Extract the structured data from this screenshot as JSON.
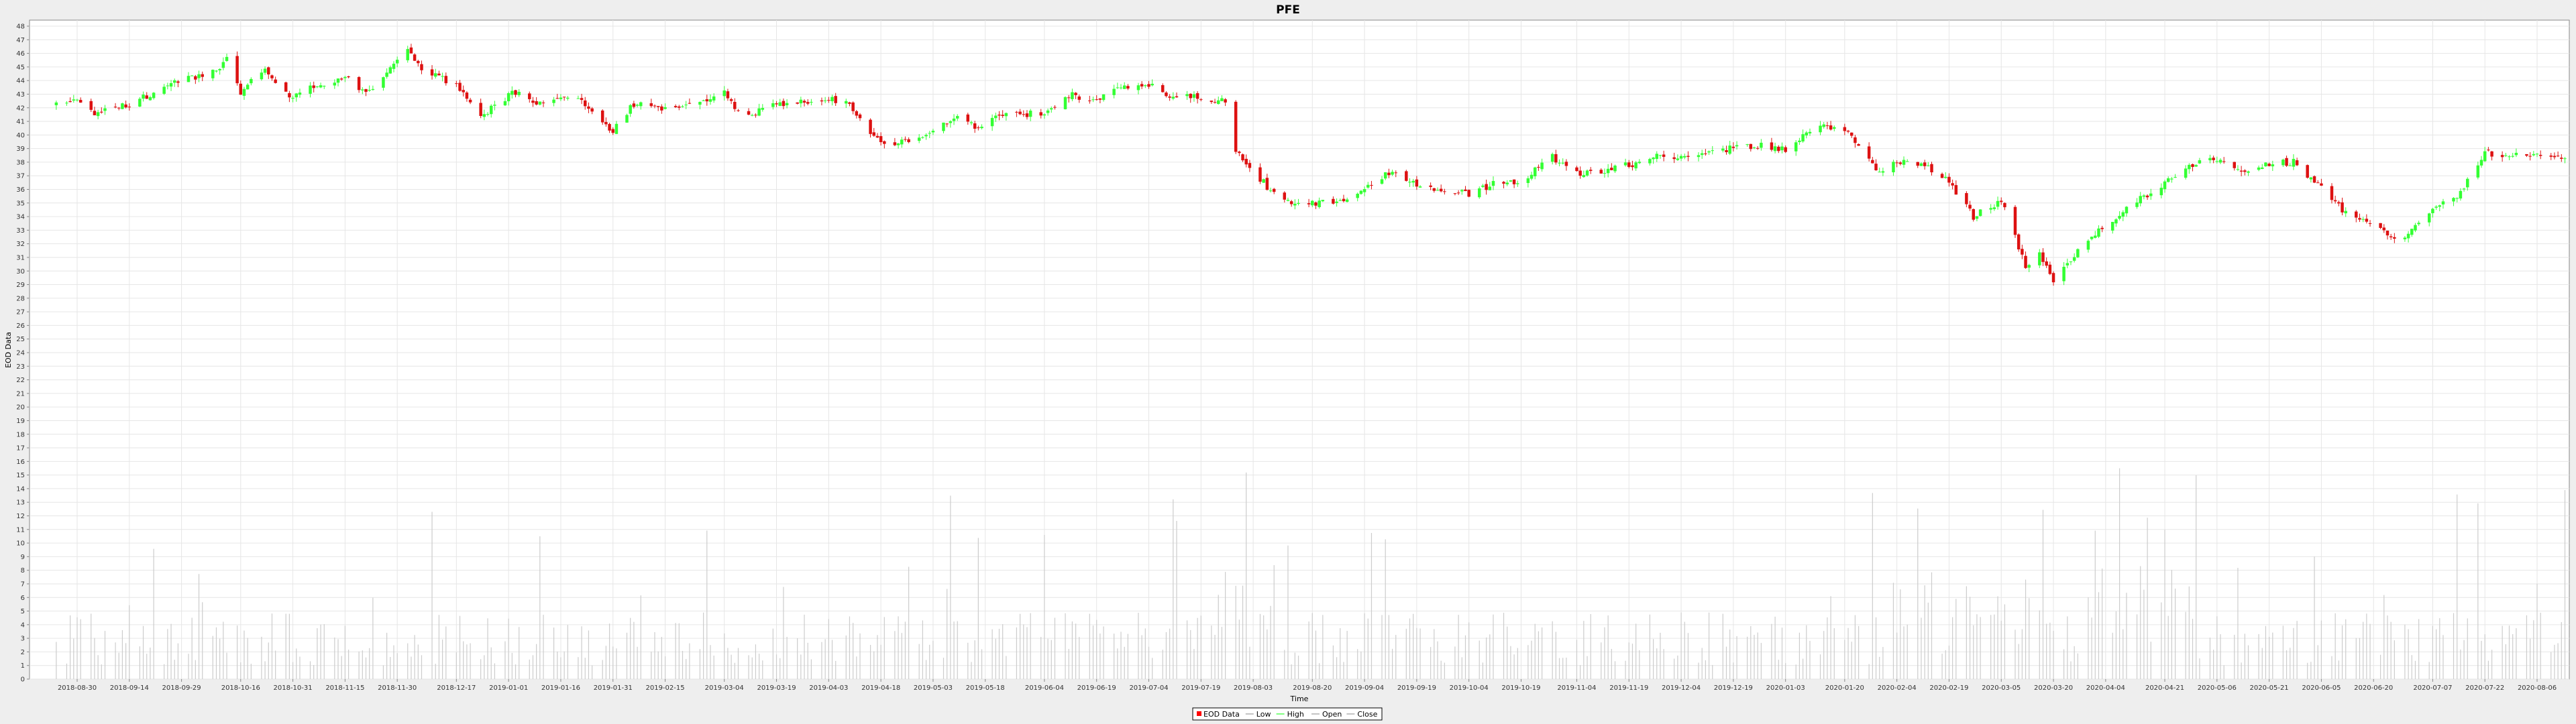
{
  "chart_data": {
    "type": "candlestick",
    "title": "PFE",
    "xlabel": "Time",
    "ylabel": "EOD Data",
    "ylim": [
      0,
      48
    ],
    "grid": true,
    "legend_position": "bottom",
    "y_ticks": [
      0,
      1,
      2,
      3,
      4,
      5,
      6,
      7,
      8,
      9,
      10,
      11,
      12,
      13,
      14,
      15,
      16,
      17,
      18,
      19,
      20,
      21,
      22,
      23,
      24,
      25,
      26,
      27,
      28,
      29,
      30,
      31,
      32,
      33,
      34,
      35,
      36,
      37,
      38,
      39,
      40,
      41,
      42,
      43,
      44,
      45,
      46,
      47,
      48
    ],
    "x_ticks": [
      "2018-08-30",
      "2018-09-14",
      "2018-09-29",
      "2018-10-16",
      "2018-10-31",
      "2018-11-15",
      "2018-11-30",
      "2018-12-17",
      "2019-01-01",
      "2019-01-16",
      "2019-01-31",
      "2019-02-15",
      "2019-03-04",
      "2019-03-19",
      "2019-04-03",
      "2019-04-18",
      "2019-05-03",
      "2019-05-18",
      "2019-06-04",
      "2019-06-19",
      "2019-07-04",
      "2019-07-19",
      "2019-08-03",
      "2019-08-20",
      "2019-09-04",
      "2019-09-19",
      "2019-10-04",
      "2019-10-19",
      "2019-11-04",
      "2019-11-19",
      "2019-12-04",
      "2019-12-19",
      "2020-01-03",
      "2020-01-20",
      "2020-02-04",
      "2020-02-19",
      "2020-03-05",
      "2020-03-20",
      "2020-04-04",
      "2020-04-21",
      "2020-05-06",
      "2020-05-21",
      "2020-06-05",
      "2020-06-20",
      "2020-07-07",
      "2020-07-22",
      "2020-08-06"
    ],
    "price_anchors": [
      {
        "date": "2018-08-24",
        "close": 42.3
      },
      {
        "date": "2018-08-31",
        "close": 42.4
      },
      {
        "date": "2018-09-04",
        "close": 41.6
      },
      {
        "date": "2018-09-14",
        "close": 42.3
      },
      {
        "date": "2018-09-24",
        "close": 43.5
      },
      {
        "date": "2018-09-29",
        "close": 44.1
      },
      {
        "date": "2018-10-09",
        "close": 44.6
      },
      {
        "date": "2018-10-12",
        "close": 45.6
      },
      {
        "date": "2018-10-16",
        "close": 43.2
      },
      {
        "date": "2018-10-23",
        "close": 44.8
      },
      {
        "date": "2018-10-31",
        "close": 42.7
      },
      {
        "date": "2018-11-08",
        "close": 43.8
      },
      {
        "date": "2018-11-15",
        "close": 44.2
      },
      {
        "date": "2018-11-21",
        "close": 43.0
      },
      {
        "date": "2018-11-30",
        "close": 45.4
      },
      {
        "date": "2018-12-03",
        "close": 46.4
      },
      {
        "date": "2018-12-07",
        "close": 44.8
      },
      {
        "date": "2018-12-17",
        "close": 43.7
      },
      {
        "date": "2018-12-24",
        "close": 41.2
      },
      {
        "date": "2018-12-28",
        "close": 42.3
      },
      {
        "date": "2019-01-04",
        "close": 43.3
      },
      {
        "date": "2019-01-09",
        "close": 42.3
      },
      {
        "date": "2019-01-16",
        "close": 43.0
      },
      {
        "date": "2019-01-23",
        "close": 42.3
      },
      {
        "date": "2019-01-31",
        "close": 40.3
      },
      {
        "date": "2019-02-06",
        "close": 42.3
      },
      {
        "date": "2019-02-15",
        "close": 41.9
      },
      {
        "date": "2019-02-22",
        "close": 42.3
      },
      {
        "date": "2019-03-04",
        "close": 43.1
      },
      {
        "date": "2019-03-09",
        "close": 41.4
      },
      {
        "date": "2019-03-19",
        "close": 42.2
      },
      {
        "date": "2019-04-03",
        "close": 42.6
      },
      {
        "date": "2019-04-08",
        "close": 42.5
      },
      {
        "date": "2019-04-18",
        "close": 39.3
      },
      {
        "date": "2019-04-25",
        "close": 39.6
      },
      {
        "date": "2019-05-03",
        "close": 40.3
      },
      {
        "date": "2019-05-10",
        "close": 41.4
      },
      {
        "date": "2019-05-15",
        "close": 40.6
      },
      {
        "date": "2019-05-22",
        "close": 41.3
      },
      {
        "date": "2019-06-04",
        "close": 41.7
      },
      {
        "date": "2019-06-12",
        "close": 42.9
      },
      {
        "date": "2019-06-19",
        "close": 42.6
      },
      {
        "date": "2019-06-28",
        "close": 43.6
      },
      {
        "date": "2019-07-04",
        "close": 43.7
      },
      {
        "date": "2019-07-10",
        "close": 42.9
      },
      {
        "date": "2019-07-19",
        "close": 42.7
      },
      {
        "date": "2019-07-26",
        "close": 42.5
      },
      {
        "date": "2019-07-29",
        "close": 39.0
      },
      {
        "date": "2019-08-03",
        "close": 37.4
      },
      {
        "date": "2019-08-09",
        "close": 35.6
      },
      {
        "date": "2019-08-15",
        "close": 34.7
      },
      {
        "date": "2019-08-20",
        "close": 35.0
      },
      {
        "date": "2019-08-28",
        "close": 35.2
      },
      {
        "date": "2019-09-04",
        "close": 35.9
      },
      {
        "date": "2019-09-12",
        "close": 37.4
      },
      {
        "date": "2019-09-19",
        "close": 36.4
      },
      {
        "date": "2019-09-26",
        "close": 35.9
      },
      {
        "date": "2019-10-04",
        "close": 35.7
      },
      {
        "date": "2019-10-12",
        "close": 36.5
      },
      {
        "date": "2019-10-19",
        "close": 36.6
      },
      {
        "date": "2019-10-28",
        "close": 38.4
      },
      {
        "date": "2019-11-04",
        "close": 37.1
      },
      {
        "date": "2019-11-12",
        "close": 37.4
      },
      {
        "date": "2019-11-19",
        "close": 37.8
      },
      {
        "date": "2019-11-27",
        "close": 38.5
      },
      {
        "date": "2019-12-04",
        "close": 38.3
      },
      {
        "date": "2019-12-12",
        "close": 38.6
      },
      {
        "date": "2019-12-19",
        "close": 39.1
      },
      {
        "date": "2019-12-27",
        "close": 39.2
      },
      {
        "date": "2020-01-03",
        "close": 39.0
      },
      {
        "date": "2020-01-13",
        "close": 40.8
      },
      {
        "date": "2020-01-20",
        "close": 40.4
      },
      {
        "date": "2020-01-24",
        "close": 39.2
      },
      {
        "date": "2020-01-29",
        "close": 37.3
      },
      {
        "date": "2020-02-04",
        "close": 38.0
      },
      {
        "date": "2020-02-12",
        "close": 37.8
      },
      {
        "date": "2020-02-19",
        "close": 36.5
      },
      {
        "date": "2020-02-26",
        "close": 34.0
      },
      {
        "date": "2020-03-05",
        "close": 35.2
      },
      {
        "date": "2020-03-12",
        "close": 30.4
      },
      {
        "date": "2020-03-16",
        "close": 31.5
      },
      {
        "date": "2020-03-20",
        "close": 29.0
      },
      {
        "date": "2020-03-27",
        "close": 31.6
      },
      {
        "date": "2020-04-04",
        "close": 33.4
      },
      {
        "date": "2020-04-14",
        "close": 35.3
      },
      {
        "date": "2020-04-21",
        "close": 36.5
      },
      {
        "date": "2020-04-28",
        "close": 37.8
      },
      {
        "date": "2020-05-06",
        "close": 38.3
      },
      {
        "date": "2020-05-13",
        "close": 37.3
      },
      {
        "date": "2020-05-21",
        "close": 37.9
      },
      {
        "date": "2020-05-28",
        "close": 38.0
      },
      {
        "date": "2020-06-05",
        "close": 36.1
      },
      {
        "date": "2020-06-11",
        "close": 34.5
      },
      {
        "date": "2020-06-20",
        "close": 33.5
      },
      {
        "date": "2020-06-27",
        "close": 32.2
      },
      {
        "date": "2020-07-07",
        "close": 34.7
      },
      {
        "date": "2020-07-15",
        "close": 35.7
      },
      {
        "date": "2020-07-22",
        "close": 38.7
      },
      {
        "date": "2020-07-29",
        "close": 38.4
      },
      {
        "date": "2020-08-06",
        "close": 38.6
      },
      {
        "date": "2020-08-14",
        "close": 38.3
      }
    ],
    "volume_range": [
      0,
      15.5
    ],
    "series": [
      {
        "name": "EOD Data",
        "color": "#ff0000"
      },
      {
        "name": "Low",
        "color": "#888888"
      },
      {
        "name": "High",
        "color": "#00ff00"
      },
      {
        "name": "Open",
        "color": "#888888"
      },
      {
        "name": "Close",
        "color": "#888888"
      }
    ],
    "colors": {
      "up": "#33ff33",
      "down": "#dd1111",
      "volume": "#cccccc"
    }
  }
}
